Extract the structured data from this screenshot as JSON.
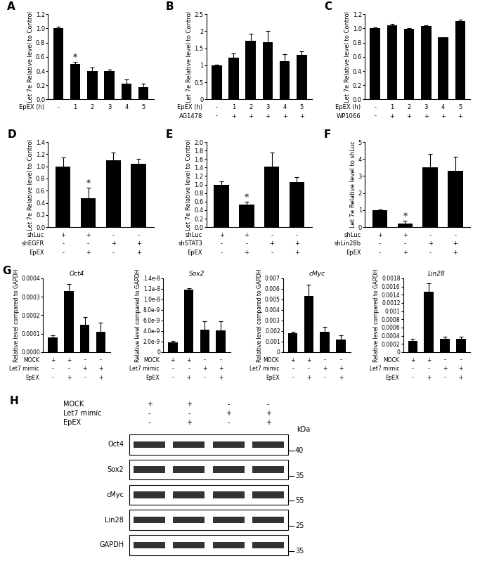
{
  "chart_data": [
    {
      "type": "bar",
      "panel": "A",
      "y_label": "Let 7e Relative level to Control",
      "categories": [
        null,
        null,
        null,
        null,
        null,
        null
      ],
      "values": [
        1.0,
        0.5,
        0.4,
        0.4,
        0.22,
        0.17
      ],
      "errors": [
        0.02,
        0.03,
        0.05,
        0.02,
        0.06,
        0.05
      ],
      "significance": [
        null,
        "*",
        null,
        null,
        null,
        null
      ],
      "conditions": [
        {
          "name": "EpEX (h)",
          "values": [
            "-",
            "1",
            "2",
            "3",
            "4",
            "5"
          ]
        }
      ],
      "color": "#000000",
      "ylim": [
        0,
        1.2
      ],
      "yticks": [
        {
          "value": 0,
          "label": "0.0"
        },
        0.2,
        0.4,
        0.6,
        0.8,
        {
          "value": 1,
          "label": "1.0"
        },
        1.2
      ]
    },
    {
      "type": "bar",
      "panel": "B",
      "y_label": "Let 7e Relative level to Control",
      "categories": [
        null,
        null,
        null,
        null,
        null,
        null
      ],
      "values": [
        1.0,
        1.22,
        1.72,
        1.68,
        1.12,
        1.3
      ],
      "errors": [
        0.02,
        0.12,
        0.2,
        0.32,
        0.2,
        0.12
      ],
      "conditions": [
        {
          "name": "EpEX (h)",
          "values": [
            "-",
            "1",
            "2",
            "3",
            "4",
            "5"
          ]
        },
        {
          "name": "AG1478",
          "values": [
            "-",
            "+",
            "+",
            "+",
            "+",
            "+"
          ]
        }
      ],
      "color": "#000000",
      "ylim": [
        0,
        2.5
      ],
      "yticks": [
        0,
        0.5,
        1,
        1.5,
        2,
        2.5
      ]
    },
    {
      "type": "bar",
      "panel": "C",
      "y_label": "Let 7e Relative level to Control",
      "categories": [
        null,
        null,
        null,
        null,
        null,
        null
      ],
      "values": [
        1.0,
        1.04,
        0.99,
        1.03,
        0.88,
        1.1
      ],
      "errors": [
        0.01,
        0.02,
        0.01,
        0.01,
        0.0,
        0.02
      ],
      "conditions": [
        {
          "name": "EpEX (h)",
          "values": [
            "-",
            "1",
            "2",
            "3",
            "4",
            "5"
          ]
        },
        {
          "name": "WP1066",
          "values": [
            "-",
            "+",
            "+",
            "+",
            "+",
            "+"
          ]
        }
      ],
      "color": "#000000",
      "ylim": [
        0,
        1.2
      ],
      "yticks": [
        {
          "value": 0,
          "label": "0.0"
        },
        0.2,
        0.4,
        0.6,
        0.8,
        {
          "value": 1,
          "label": "1.0"
        },
        1.2
      ]
    },
    {
      "type": "bar",
      "panel": "D",
      "y_label": "Let 7e Relative level to Control",
      "categories": [
        null,
        null,
        null,
        null
      ],
      "values": [
        1.0,
        0.48,
        1.1,
        1.04
      ],
      "errors": [
        0.15,
        0.17,
        0.13,
        0.08
      ],
      "significance": [
        null,
        "*",
        null,
        null
      ],
      "conditions": [
        {
          "name": "shLuc",
          "values": [
            "+",
            "+",
            "-",
            "-"
          ]
        },
        {
          "name": "shEGFR",
          "values": [
            "-",
            "-",
            "+",
            "+"
          ]
        },
        {
          "name": "EpEX",
          "values": [
            "-",
            "+",
            "-",
            "+"
          ]
        }
      ],
      "color": "#000000",
      "ylim": [
        0,
        1.4
      ],
      "yticks": [
        {
          "value": 0,
          "label": "0.0"
        },
        0.2,
        0.4,
        0.6,
        0.8,
        {
          "value": 1,
          "label": "1.0"
        },
        1.2,
        1.4
      ]
    },
    {
      "type": "bar",
      "panel": "E",
      "y_label": "Let 7e Relative level to Control",
      "categories": [
        null,
        null,
        null,
        null
      ],
      "values": [
        1.0,
        0.53,
        1.42,
        1.06
      ],
      "errors": [
        0.07,
        0.06,
        0.33,
        0.12
      ],
      "significance": [
        null,
        "*",
        null,
        null
      ],
      "conditions": [
        {
          "name": "shLuc",
          "values": [
            "+",
            "+",
            "-",
            "-"
          ]
        },
        {
          "name": "shSTAT3",
          "values": [
            "-",
            "-",
            "+",
            "+"
          ]
        },
        {
          "name": "EpEX",
          "values": [
            "-",
            "+",
            "-",
            "+"
          ]
        }
      ],
      "color": "#000000",
      "ylim": [
        0,
        2.0
      ],
      "yticks": [
        {
          "value": 0,
          "label": "0.0"
        },
        0.2,
        0.4,
        0.6,
        0.8,
        {
          "value": 1,
          "label": "1.0"
        },
        1.2,
        1.4,
        1.6,
        1.8,
        {
          "value": 2,
          "label": "2.0"
        }
      ]
    },
    {
      "type": "bar",
      "panel": "F",
      "y_label": "Let 7e Relative level to shLuc",
      "categories": [
        null,
        null,
        null,
        null
      ],
      "values": [
        1.0,
        0.2,
        3.5,
        3.3
      ],
      "errors": [
        0.03,
        0.2,
        0.8,
        0.85
      ],
      "significance": [
        null,
        "*",
        null,
        null
      ],
      "conditions": [
        {
          "name": "shLuc",
          "values": [
            "+",
            "+",
            "-",
            "-"
          ]
        },
        {
          "name": "shLin28b",
          "values": [
            "-",
            "-",
            "+",
            "+"
          ]
        },
        {
          "name": "EpEX",
          "values": [
            "-",
            "+",
            "-",
            "+"
          ]
        }
      ],
      "color": "#000000",
      "ylim": [
        0,
        5
      ],
      "yticks": [
        0,
        1,
        2,
        3,
        4,
        5
      ]
    },
    {
      "type": "bar",
      "panel": "G",
      "title": "Oct4",
      "y_label": "Relative level compared to GAPDH",
      "categories": [
        null,
        null,
        null,
        null
      ],
      "values": [
        8e-05,
        0.00033,
        0.00015,
        0.00011
      ],
      "errors": [
        1e-05,
        4e-05,
        4e-05,
        5e-05
      ],
      "conditions": [
        {
          "name": "MOCK",
          "values": [
            "+",
            "+",
            "-",
            "-"
          ]
        },
        {
          "name": "Let7 mimic",
          "values": [
            "-",
            "-",
            "+",
            "+"
          ]
        },
        {
          "name": "EpEX",
          "values": [
            "-",
            "+",
            "-",
            "+"
          ]
        }
      ],
      "color": "#000000",
      "ylim": [
        0,
        0.0004
      ],
      "yticks": [
        {
          "value": 0,
          "label": "0.0000"
        },
        0.0001,
        0.0002,
        0.0003,
        0.0004
      ]
    },
    {
      "type": "bar",
      "title": "Sox2",
      "y_label": "Relative level compared to GAPDH",
      "categories": [
        null,
        null,
        null,
        null
      ],
      "values": [
        1.8e-09,
        1.18e-08,
        4.3e-09,
        4.1e-09
      ],
      "errors": [
        3e-10,
        3e-10,
        1.5e-09,
        1.8e-09
      ],
      "conditions": [
        {
          "name": "MOCK",
          "values": [
            "+",
            "+",
            "-",
            "-"
          ]
        },
        {
          "name": "Let7 mimic",
          "values": [
            "-",
            "-",
            "+",
            "+"
          ]
        },
        {
          "name": "EpEX",
          "values": [
            "-",
            "+",
            "-",
            "+"
          ]
        }
      ],
      "color": "#000000",
      "ylim": [
        0,
        1.4e-08
      ],
      "yticks": [
        0,
        {
          "value": 2e-09,
          "label": "2.0e-9"
        },
        {
          "value": 4e-09,
          "label": "4.0e-9"
        },
        {
          "value": 6e-09,
          "label": "6.0e-9"
        },
        {
          "value": 8e-09,
          "label": "8.0e-9"
        },
        {
          "value": 1e-08,
          "label": "1.0e-8"
        },
        {
          "value": 1.2e-08,
          "label": "1.2e-8"
        },
        {
          "value": 1.4e-08,
          "label": "1.4e-8"
        }
      ]
    },
    {
      "type": "bar",
      "title": "cMyc",
      "y_label": "Relative level compared to GAPDH",
      "categories": [
        null,
        null,
        null,
        null
      ],
      "values": [
        0.0018,
        0.0053,
        0.0019,
        0.0012
      ],
      "errors": [
        0.0001,
        0.0011,
        0.0005,
        0.0004
      ],
      "conditions": [
        {
          "name": "MOCK",
          "values": [
            "+",
            "+",
            "-",
            "-"
          ]
        },
        {
          "name": "Let7 mimic",
          "values": [
            "-",
            "-",
            "+",
            "+"
          ]
        },
        {
          "name": "EpEX",
          "values": [
            "-",
            "+",
            "-",
            "+"
          ]
        }
      ],
      "color": "#000000",
      "ylim": [
        0,
        0.007
      ],
      "yticks": [
        0,
        0.001,
        0.002,
        0.003,
        0.004,
        0.005,
        0.006,
        0.007
      ]
    },
    {
      "type": "bar",
      "title": "Lin28",
      "y_label": "Relative level compared to GAPDH",
      "categories": [
        null,
        null,
        null,
        null
      ],
      "values": [
        0.00027,
        0.00148,
        0.00033,
        0.00033
      ],
      "errors": [
        6e-05,
        0.0002,
        4e-05,
        5e-05
      ],
      "conditions": [
        {
          "name": "MOCK",
          "values": [
            "+",
            "+",
            "-",
            "-"
          ]
        },
        {
          "name": "Let7 mimic",
          "values": [
            "-",
            "-",
            "+",
            "+"
          ]
        },
        {
          "name": "EpEX",
          "values": [
            "-",
            "+",
            "-",
            "+"
          ]
        }
      ],
      "color": "#000000",
      "ylim": [
        0,
        0.0018
      ],
      "yticks": [
        0,
        0.0002,
        0.0004,
        0.0006,
        0.0008,
        0.001,
        0.0012,
        0.0014,
        0.0016,
        0.0018
      ]
    }
  ],
  "blot": {
    "panel": "H",
    "conditions": [
      {
        "name": "MOCK",
        "values": [
          "+",
          "+",
          "-",
          "-"
        ]
      },
      {
        "name": "Let7 mimic",
        "values": [
          "-",
          "-",
          "+",
          "+"
        ]
      },
      {
        "name": "EpEX",
        "values": [
          "-",
          "+",
          "-",
          "+"
        ]
      }
    ],
    "marker_unit": "kDa",
    "rows": [
      {
        "label": "Oct4",
        "marker": 40
      },
      {
        "label": "Sox2",
        "marker": 35
      },
      {
        "label": "cMyc",
        "marker": 55
      },
      {
        "label": "Lin28",
        "marker": 25
      },
      {
        "label": "GAPDH",
        "marker": 35
      }
    ]
  }
}
